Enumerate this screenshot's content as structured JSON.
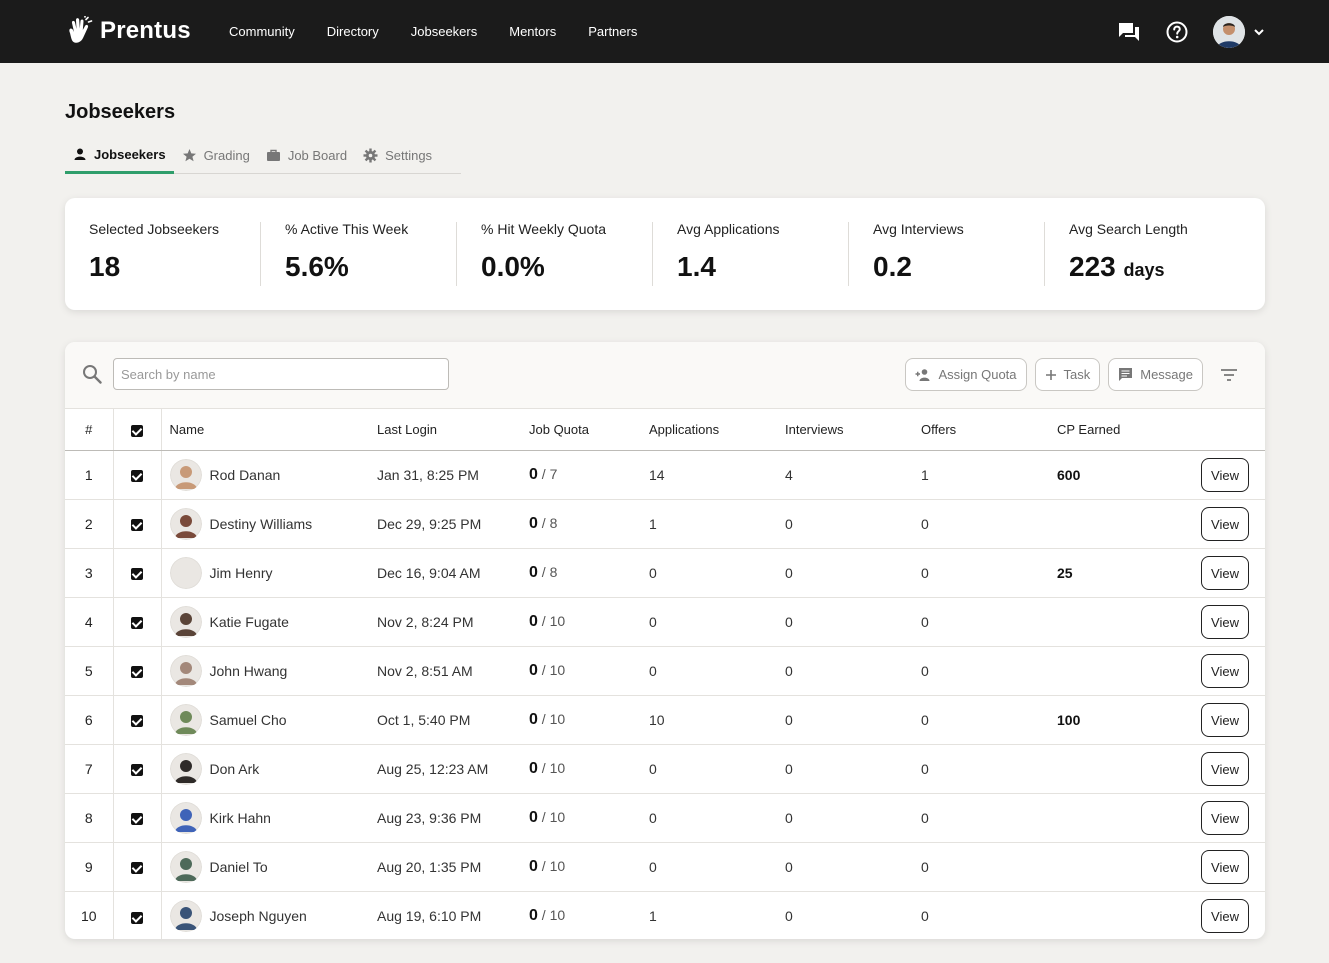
{
  "brand": {
    "name": "Prentus",
    "logo_icon": "hand-wave-icon"
  },
  "nav": {
    "items": [
      "Community",
      "Directory",
      "Jobseekers",
      "Mentors",
      "Partners"
    ]
  },
  "top_right": {
    "messages_icon": "chat-icon",
    "help_icon": "help-circle-icon",
    "menu_icon": "chevron-down-icon"
  },
  "page": {
    "title": "Jobseekers"
  },
  "tabs": [
    {
      "label": "Jobseekers",
      "icon": "person-icon",
      "active": true
    },
    {
      "label": "Grading",
      "icon": "star-icon",
      "active": false
    },
    {
      "label": "Job Board",
      "icon": "briefcase-icon",
      "active": false
    },
    {
      "label": "Settings",
      "icon": "gear-icon",
      "active": false
    }
  ],
  "stats": [
    {
      "label": "Selected Jobseekers",
      "value": "18",
      "unit": ""
    },
    {
      "label": "% Active This Week",
      "value": "5.6%",
      "unit": ""
    },
    {
      "label": "% Hit Weekly Quota",
      "value": "0.0%",
      "unit": ""
    },
    {
      "label": "Avg Applications",
      "value": "1.4",
      "unit": ""
    },
    {
      "label": "Avg Interviews",
      "value": "0.2",
      "unit": ""
    },
    {
      "label": "Avg Search Length",
      "value": "223",
      "unit": "days"
    }
  ],
  "toolbar": {
    "search_placeholder": "Search by name",
    "assign_quota_label": "Assign Quota",
    "task_label": "Task",
    "message_label": "Message"
  },
  "table": {
    "columns": {
      "num": "#",
      "name": "Name",
      "last_login": "Last Login",
      "job_quota": "Job Quota",
      "applications": "Applications",
      "interviews": "Interviews",
      "offers": "Offers",
      "cp_earned": "CP Earned"
    },
    "view_label": "View",
    "rows": [
      {
        "num": "1",
        "name": "Rod Danan",
        "last_login": "Jan 31, 8:25 PM",
        "quota_done": "0",
        "quota_total": "/ 7",
        "applications": "14",
        "interviews": "4",
        "offers": "1",
        "cp": "600",
        "avatar_color": "#c89a78"
      },
      {
        "num": "2",
        "name": "Destiny Williams",
        "last_login": "Dec 29, 9:25 PM",
        "quota_done": "0",
        "quota_total": "/ 8",
        "applications": "1",
        "interviews": "0",
        "offers": "0",
        "cp": "",
        "avatar_color": "#7a4a3a"
      },
      {
        "num": "3",
        "name": "Jim Henry",
        "last_login": "Dec 16, 9:04 AM",
        "quota_done": "0",
        "quota_total": "/ 8",
        "applications": "0",
        "interviews": "0",
        "offers": "0",
        "cp": "25",
        "avatar_color": "#ffffff"
      },
      {
        "num": "4",
        "name": "Katie Fugate",
        "last_login": "Nov 2, 8:24 PM",
        "quota_done": "0",
        "quota_total": "/ 10",
        "applications": "0",
        "interviews": "0",
        "offers": "0",
        "cp": "",
        "avatar_color": "#5a4438"
      },
      {
        "num": "5",
        "name": "John Hwang",
        "last_login": "Nov 2, 8:51 AM",
        "quota_done": "0",
        "quota_total": "/ 10",
        "applications": "0",
        "interviews": "0",
        "offers": "0",
        "cp": "",
        "avatar_color": "#a3887a"
      },
      {
        "num": "6",
        "name": "Samuel Cho",
        "last_login": "Oct 1, 5:40 PM",
        "quota_done": "0",
        "quota_total": "/ 10",
        "applications": "10",
        "interviews": "0",
        "offers": "0",
        "cp": "100",
        "avatar_color": "#6f8a5a"
      },
      {
        "num": "7",
        "name": "Don Ark",
        "last_login": "Aug 25, 12:23 AM",
        "quota_done": "0",
        "quota_total": "/ 10",
        "applications": "0",
        "interviews": "0",
        "offers": "0",
        "cp": "",
        "avatar_color": "#2e2a28"
      },
      {
        "num": "8",
        "name": "Kirk Hahn",
        "last_login": "Aug 23, 9:36 PM",
        "quota_done": "0",
        "quota_total": "/ 10",
        "applications": "0",
        "interviews": "0",
        "offers": "0",
        "cp": "",
        "avatar_color": "#3f63b8"
      },
      {
        "num": "9",
        "name": "Daniel To",
        "last_login": "Aug 20, 1:35 PM",
        "quota_done": "0",
        "quota_total": "/ 10",
        "applications": "0",
        "interviews": "0",
        "offers": "0",
        "cp": "",
        "avatar_color": "#4e6a5a"
      },
      {
        "num": "10",
        "name": "Joseph Nguyen",
        "last_login": "Aug 19, 6:10 PM",
        "quota_done": "0",
        "quota_total": "/ 10",
        "applications": "1",
        "interviews": "0",
        "offers": "0",
        "cp": "",
        "avatar_color": "#3a5478"
      }
    ]
  },
  "colors": {
    "accent": "#2f9e6b",
    "topbar": "#1b1b1b",
    "background": "#f2f1ee"
  }
}
